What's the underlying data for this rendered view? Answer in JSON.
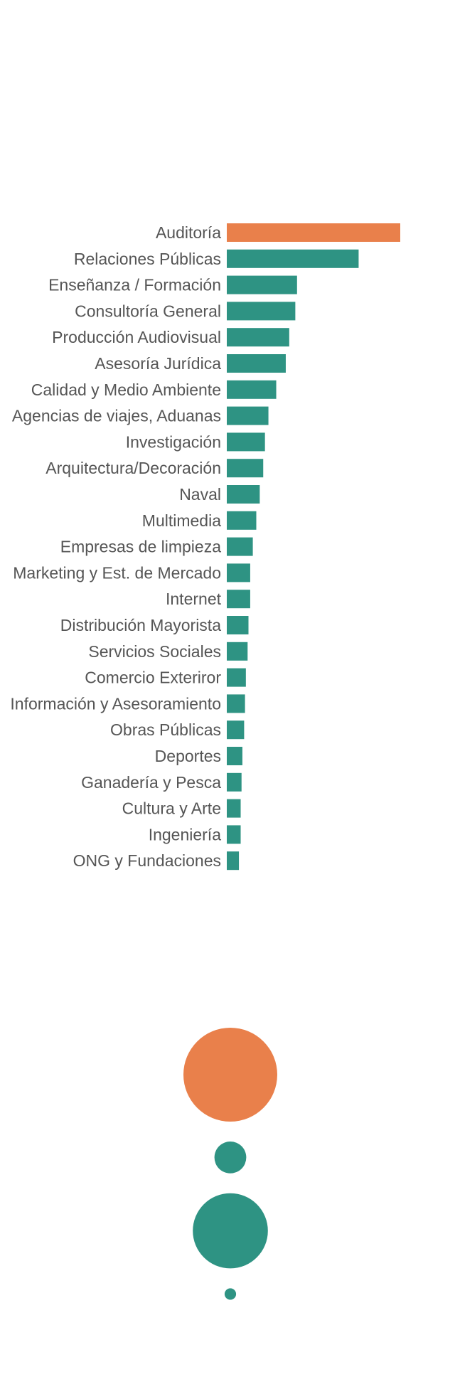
{
  "chart_data": [
    {
      "type": "bar",
      "orientation": "horizontal",
      "title": "",
      "xlabel": "",
      "ylabel": "",
      "grid": false,
      "legend": "none",
      "highlight_color": "#e9804b",
      "bar_color": "#2e9383",
      "categories": [
        "Auditoría",
        "Relaciones Públicas",
        "Enseñanza / Formación",
        "Consultoría General",
        "Producción Audiovisual",
        "Asesoría Jurídica",
        "Calidad y Medio Ambiente",
        "Agencias de viajes, Aduanas",
        "Investigación",
        "Arquitectura/Decoración",
        "Naval",
        "Multimedia",
        "Empresas de limpieza",
        "Marketing y Est. de Mercado",
        "Internet",
        "Distribución Mayorista",
        "Servicios Sociales",
        "Comercio Exteriror",
        "Información y Asesoramiento",
        "Obras Públicas",
        "Deportes",
        "Ganadería y Pesca",
        "Cultura y Arte",
        "Ingeniería",
        "ONG y Fundaciones"
      ],
      "values": [
        100,
        76,
        40.5,
        39.5,
        36,
        34,
        28.5,
        24,
        22,
        21,
        19,
        17,
        15,
        13.5,
        13.5,
        12.5,
        12,
        11,
        10.5,
        10,
        9,
        8.5,
        8,
        8,
        7
      ],
      "highlight_index": 0
    },
    {
      "type": "bubble",
      "values": [
        100,
        11.5,
        64,
        1.5
      ],
      "colors": [
        "#e9804b",
        "#2e9383",
        "#2e9383",
        "#2e9383"
      ]
    }
  ]
}
